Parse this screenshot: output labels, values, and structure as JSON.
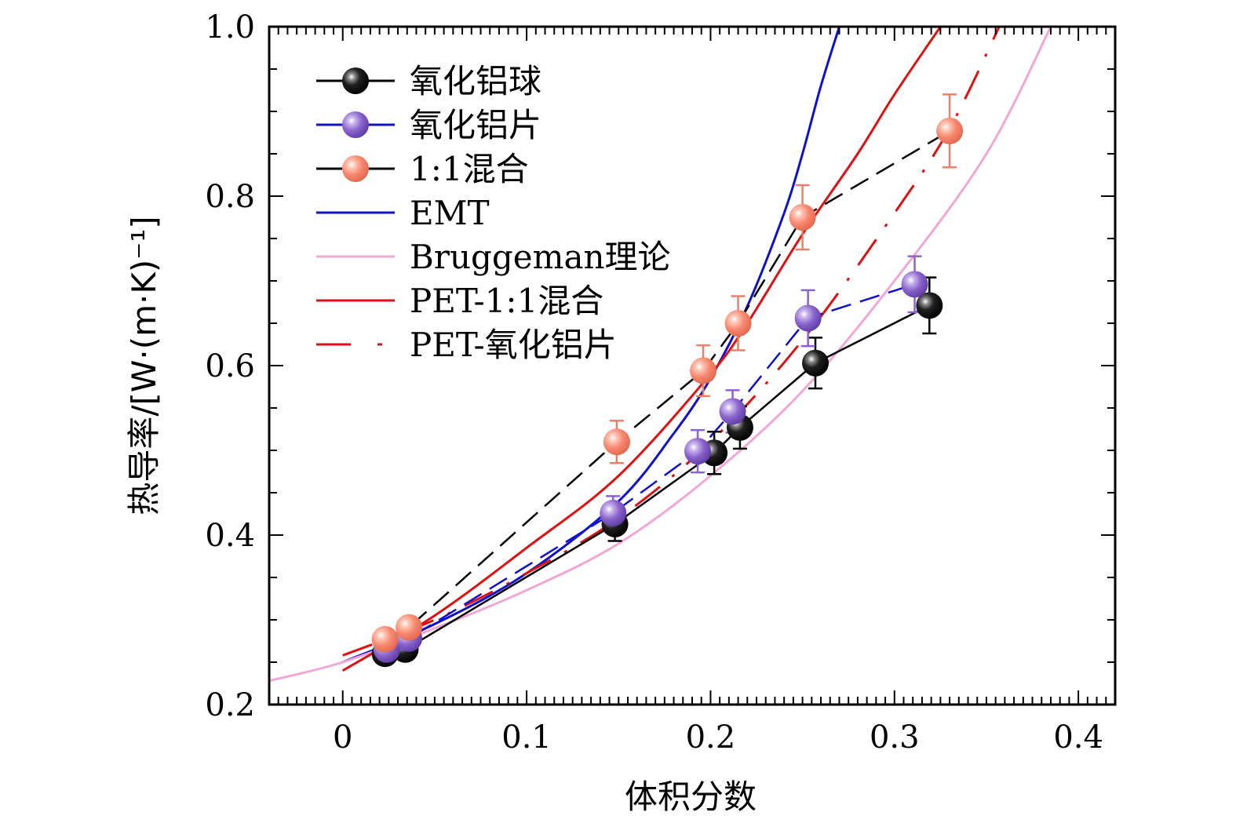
{
  "chart_data": {
    "type": "scatter",
    "title": "",
    "xlabel": "体积分数",
    "ylabel": "热导率/[W·(m·K)⁻¹]",
    "xlim": [
      -0.04,
      0.42
    ],
    "ylim": [
      0.2,
      1.0
    ],
    "x_ticks": [
      "0",
      "0.1",
      "0.2",
      "0.3",
      "0.4"
    ],
    "x_tick_values": [
      0,
      0.1,
      0.2,
      0.3,
      0.4
    ],
    "y_ticks": [
      "0.2",
      "0.4",
      "0.6",
      "0.8",
      "1.0"
    ],
    "y_tick_values": [
      0.2,
      0.4,
      0.6,
      0.8,
      1.0
    ],
    "grid": false,
    "legend_position": "top-left",
    "series": [
      {
        "name": "氧化铝球",
        "kind": "markers-line",
        "color": "#000000",
        "line_color": "#000000",
        "dash": "solid",
        "x": [
          0.023,
          0.034,
          0.148,
          0.202,
          0.216,
          0.257,
          0.319
        ],
        "y": [
          0.26,
          0.265,
          0.413,
          0.497,
          0.527,
          0.603,
          0.671
        ],
        "err": [
          0.008,
          0.008,
          0.02,
          0.025,
          0.025,
          0.03,
          0.033
        ]
      },
      {
        "name": "氧化铝片",
        "kind": "markers-line",
        "color": "#8a63cc",
        "line_color": "#1010cc",
        "dash": "dashed",
        "x": [
          0.024,
          0.036,
          0.147,
          0.193,
          0.212,
          0.253,
          0.311
        ],
        "y": [
          0.265,
          0.278,
          0.426,
          0.499,
          0.546,
          0.656,
          0.696
        ],
        "err": [
          0.008,
          0.008,
          0.02,
          0.025,
          0.025,
          0.033,
          0.033
        ]
      },
      {
        "name": "1:1混合",
        "kind": "markers-line",
        "color": "#f88870",
        "line_color": "#000000",
        "dash": "dashed",
        "x": [
          0.023,
          0.036,
          0.149,
          0.196,
          0.215,
          0.25,
          0.33
        ],
        "y": [
          0.277,
          0.291,
          0.51,
          0.594,
          0.65,
          0.775,
          0.877
        ],
        "err": [
          0.01,
          0.012,
          0.025,
          0.03,
          0.032,
          0.038,
          0.043
        ]
      },
      {
        "name": "EMT",
        "kind": "curve",
        "color": "#1010cc",
        "dash": "solid",
        "x": [
          0,
          0.05,
          0.1,
          0.15,
          0.18,
          0.2,
          0.22,
          0.24,
          0.25,
          0.26,
          0.27
        ],
        "y": [
          0.25,
          0.295,
          0.355,
          0.44,
          0.52,
          0.585,
          0.67,
          0.78,
          0.85,
          0.93,
          1.0
        ]
      },
      {
        "name": "Bruggeman理论",
        "kind": "curve",
        "color": "#f2a6d6",
        "dash": "solid",
        "x": [
          -0.04,
          0,
          0.05,
          0.1,
          0.15,
          0.2,
          0.25,
          0.3,
          0.35,
          0.385
        ],
        "y": [
          0.228,
          0.25,
          0.29,
          0.335,
          0.39,
          0.47,
          0.57,
          0.7,
          0.85,
          1.0
        ]
      },
      {
        "name": "PET-1:1混合",
        "kind": "curve",
        "color": "#dd1111",
        "dash": "solid",
        "x": [
          0,
          0.05,
          0.1,
          0.15,
          0.2,
          0.22,
          0.25,
          0.28,
          0.3,
          0.325
        ],
        "y": [
          0.24,
          0.305,
          0.385,
          0.47,
          0.59,
          0.65,
          0.755,
          0.85,
          0.92,
          1.0
        ]
      },
      {
        "name": "PET-氧化铝片",
        "kind": "curve",
        "color": "#dd1111",
        "dash": "dashdot",
        "x": [
          0,
          0.05,
          0.1,
          0.15,
          0.2,
          0.25,
          0.3,
          0.33,
          0.357
        ],
        "y": [
          0.258,
          0.3,
          0.355,
          0.42,
          0.51,
          0.63,
          0.78,
          0.88,
          1.0
        ]
      }
    ]
  }
}
